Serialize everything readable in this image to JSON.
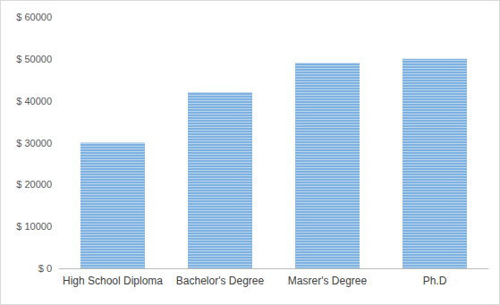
{
  "chart_data": {
    "type": "bar",
    "categories": [
      "High School Diploma",
      "Bachelor's Degree",
      "Masrer's Degree",
      "Ph.D"
    ],
    "values": [
      30000,
      42000,
      49000,
      50000
    ],
    "color": "#7fb2e0",
    "ylim": [
      0,
      60000
    ],
    "yticks": [
      {
        "value": 0,
        "label": "$ 0"
      },
      {
        "value": 10000,
        "label": "$ 10000"
      },
      {
        "value": 20000,
        "label": "$ 20000"
      },
      {
        "value": 30000,
        "label": "$ 30000"
      },
      {
        "value": 40000,
        "label": "$ 40000"
      },
      {
        "value": 50000,
        "label": "$ 50000"
      },
      {
        "value": 60000,
        "label": "$ 60000"
      }
    ],
    "grid": false
  }
}
